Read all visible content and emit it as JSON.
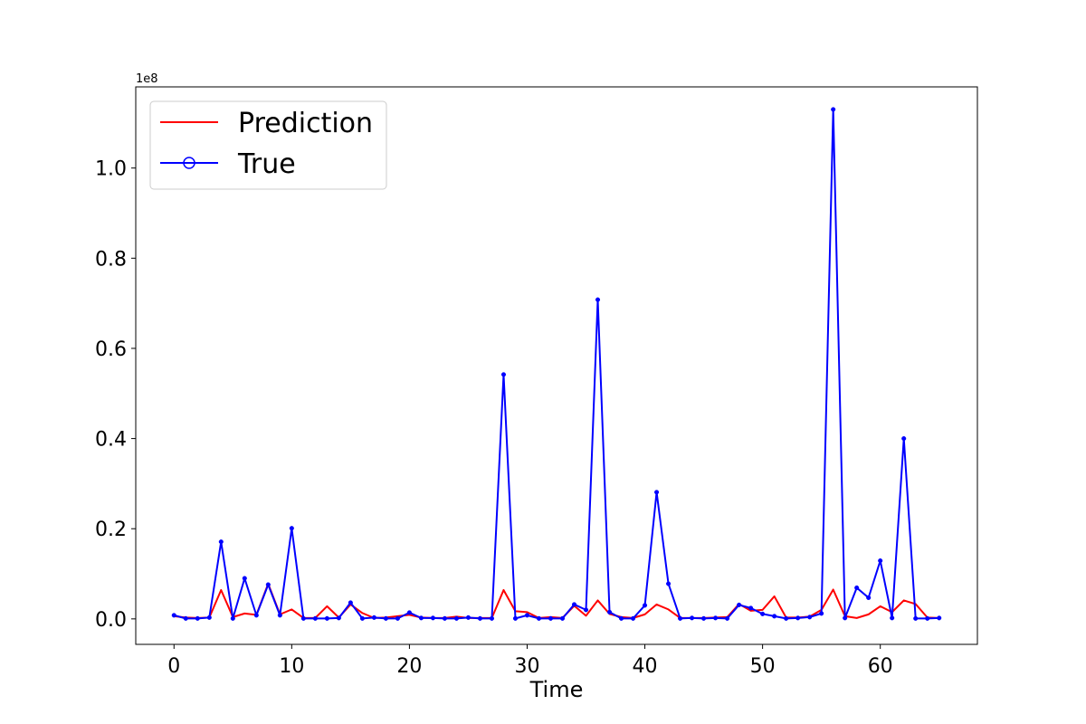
{
  "chart_data": {
    "type": "line",
    "title": "",
    "xlabel": "Time",
    "ylabel": "",
    "y_offset_label": "1e8",
    "xlim": [
      -3.25,
      68.25
    ],
    "ylim": [
      -5650000,
      118000000
    ],
    "x_ticks": [
      0,
      10,
      20,
      30,
      40,
      50,
      60
    ],
    "x_tick_labels": [
      "0",
      "10",
      "20",
      "30",
      "40",
      "50",
      "60"
    ],
    "y_ticks": [
      0,
      20000000,
      40000000,
      60000000,
      80000000,
      100000000
    ],
    "y_tick_labels": [
      "0.0",
      "0.2",
      "0.4",
      "0.6",
      "0.8",
      "1.0"
    ],
    "grid": false,
    "legend_position": "top-left",
    "series": [
      {
        "name": "Prediction",
        "color": "#ff0000",
        "marker": "none",
        "values": [
          600000,
          300000,
          200000,
          300000,
          6400000,
          400000,
          1200000,
          900000,
          7800000,
          1000000,
          2100000,
          200000,
          200000,
          2800000,
          300000,
          3200000,
          1300000,
          200000,
          300000,
          600000,
          900000,
          300000,
          200000,
          200000,
          500000,
          200000,
          200000,
          200000,
          6400000,
          1700000,
          1500000,
          200000,
          400000,
          200000,
          2900000,
          700000,
          4100000,
          1100000,
          400000,
          200000,
          1000000,
          3200000,
          2100000,
          200000,
          200000,
          200000,
          300000,
          400000,
          3300000,
          1800000,
          2000000,
          5000000,
          300000,
          300000,
          500000,
          2000000,
          6500000,
          600000,
          200000,
          1000000,
          2800000,
          1500000,
          4100000,
          3300000,
          300000,
          200000
        ]
      },
      {
        "name": "True",
        "color": "#0000ff",
        "marker": "o",
        "values": [
          800000,
          100000,
          100000,
          300000,
          17100000,
          100000,
          9000000,
          800000,
          7600000,
          800000,
          20100000,
          100000,
          100000,
          100000,
          200000,
          3600000,
          100000,
          300000,
          100000,
          100000,
          1400000,
          200000,
          200000,
          100000,
          100000,
          300000,
          100000,
          100000,
          54200000,
          100000,
          800000,
          100000,
          100000,
          100000,
          3200000,
          2000000,
          70800000,
          1500000,
          100000,
          100000,
          3000000,
          28100000,
          7800000,
          100000,
          200000,
          100000,
          200000,
          100000,
          3100000,
          2400000,
          1100000,
          600000,
          100000,
          200000,
          400000,
          1200000,
          113000000,
          200000,
          6900000,
          4700000,
          12900000,
          200000,
          40000000,
          100000,
          100000,
          200000
        ]
      }
    ]
  }
}
